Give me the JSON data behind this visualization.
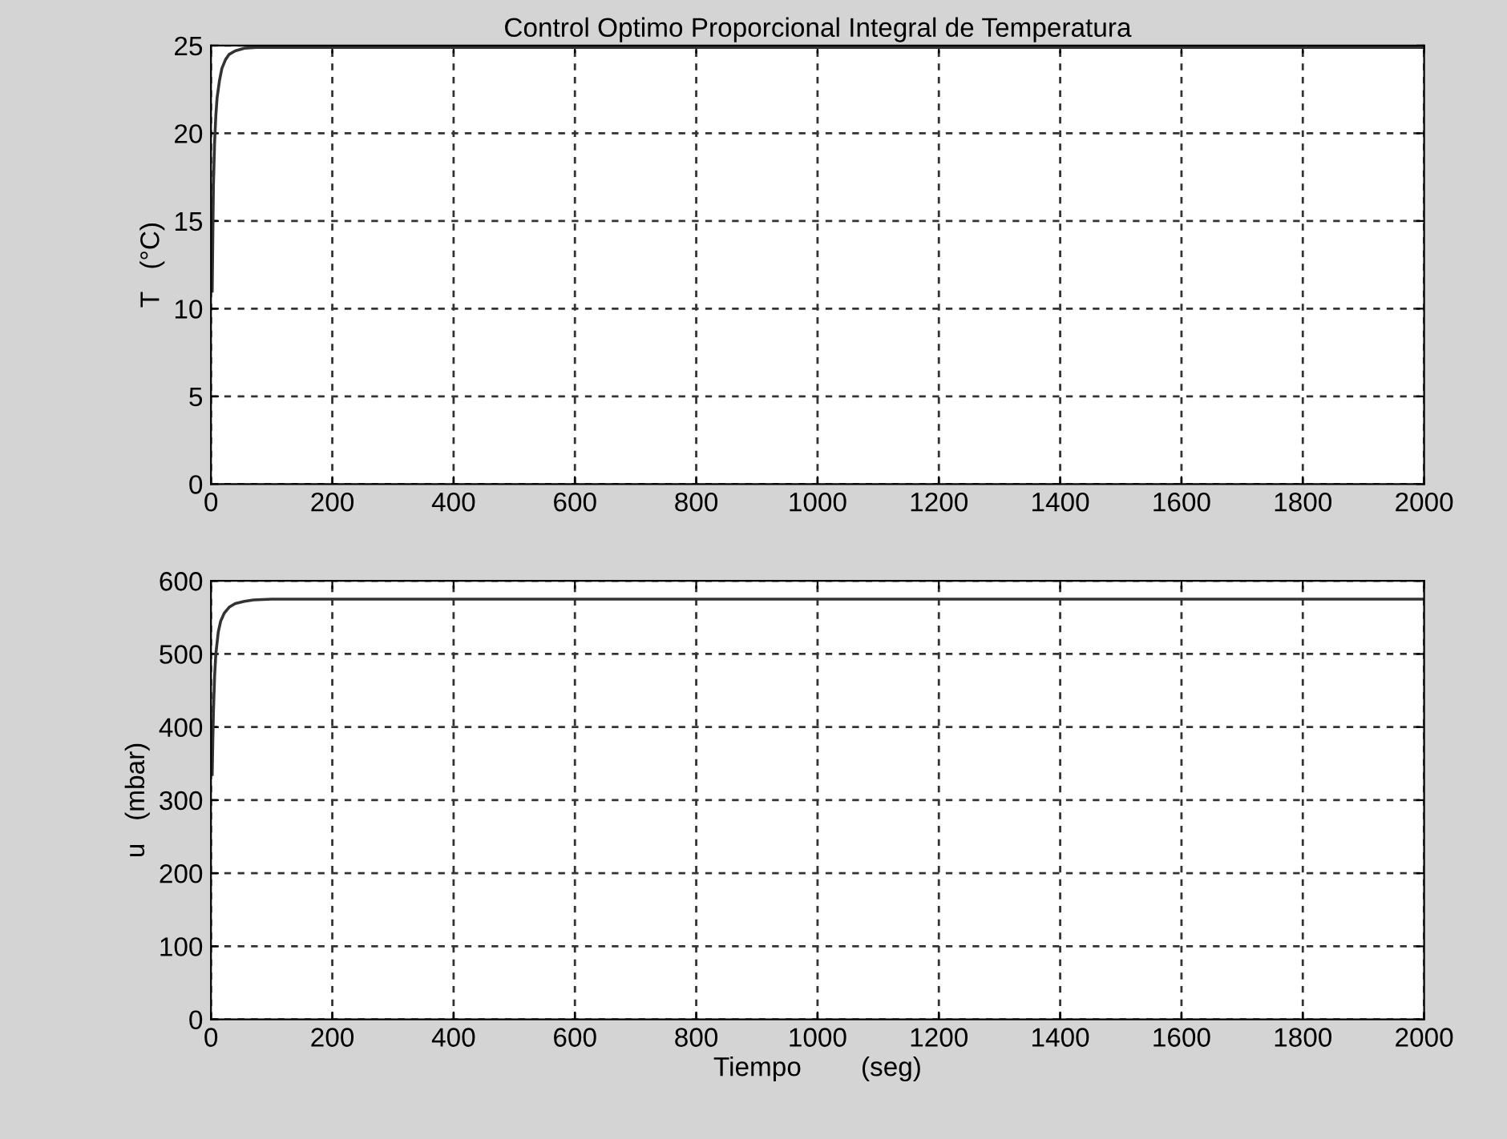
{
  "chart_data": [
    {
      "type": "line",
      "title": "Control Optimo Proporcional Integral de Temperatura",
      "ylabel": "T   (°C)",
      "xlim": [
        0,
        2000
      ],
      "xticks": [
        0,
        200,
        400,
        600,
        800,
        1000,
        1200,
        1400,
        1600,
        1800,
        2000
      ],
      "ylim": [
        0,
        25
      ],
      "yticks": [
        0,
        5,
        10,
        15,
        20,
        25
      ],
      "grid": true,
      "line_style": "solid",
      "series": [
        {
          "color": "#333333",
          "x": [
            2,
            3,
            4,
            6,
            8,
            10,
            14,
            18,
            24,
            30,
            40,
            55,
            80,
            200,
            600,
            1000,
            1500,
            2000
          ],
          "values": [
            11,
            14,
            17,
            19.5,
            21,
            22,
            23,
            23.7,
            24.2,
            24.5,
            24.7,
            24.85,
            24.9,
            24.9,
            24.9,
            24.9,
            24.9,
            24.9
          ]
        }
      ]
    },
    {
      "type": "line",
      "xlabel": "Tiempo        (seg)",
      "ylabel": "u   (mbar)",
      "xlim": [
        0,
        2000
      ],
      "xticks": [
        0,
        200,
        400,
        600,
        800,
        1000,
        1200,
        1400,
        1600,
        1800,
        2000
      ],
      "ylim": [
        0,
        600
      ],
      "yticks": [
        0,
        100,
        200,
        300,
        400,
        500,
        600
      ],
      "grid": true,
      "line_style": "solid",
      "series": [
        {
          "color": "#333333",
          "x": [
            2,
            3,
            4,
            6,
            8,
            12,
            16,
            22,
            30,
            40,
            55,
            70,
            100,
            300,
            700,
            1200,
            1600,
            2000
          ],
          "values": [
            335,
            380,
            420,
            470,
            500,
            530,
            545,
            556,
            564,
            569,
            572,
            574,
            575,
            575,
            575,
            575,
            575,
            575
          ]
        }
      ]
    }
  ]
}
